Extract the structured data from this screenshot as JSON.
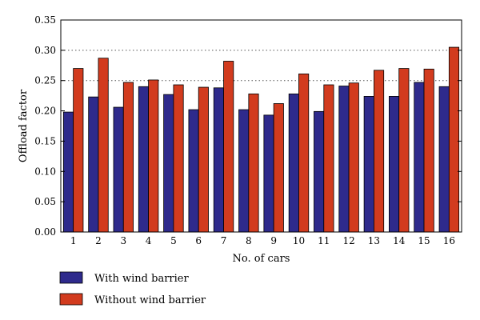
{
  "chart_data": {
    "type": "bar",
    "xlabel": "No. of cars",
    "ylabel": "Offload factor",
    "ylim": [
      0,
      0.35
    ],
    "yticks": [
      "0.00",
      "0.05",
      "0.10",
      "0.15",
      "0.20",
      "0.25",
      "0.30",
      "0.35"
    ],
    "grid": "horizontal dotted at 0.25 and 0.30",
    "legend_position": "bottom-left, below chart",
    "categories": [
      "1",
      "2",
      "3",
      "4",
      "5",
      "6",
      "7",
      "8",
      "9",
      "10",
      "11",
      "12",
      "13",
      "14",
      "15",
      "16"
    ],
    "series": [
      {
        "name": "With wind barrier",
        "color": "#2e2a8c",
        "values": [
          0.198,
          0.223,
          0.206,
          0.24,
          0.227,
          0.202,
          0.238,
          0.202,
          0.193,
          0.228,
          0.199,
          0.241,
          0.224,
          0.224,
          0.247,
          0.24
        ]
      },
      {
        "name": "Without wind barrier",
        "color": "#d23b1e",
        "values": [
          0.27,
          0.287,
          0.247,
          0.251,
          0.243,
          0.239,
          0.282,
          0.228,
          0.212,
          0.261,
          0.243,
          0.246,
          0.267,
          0.27,
          0.269,
          0.305
        ]
      }
    ]
  }
}
